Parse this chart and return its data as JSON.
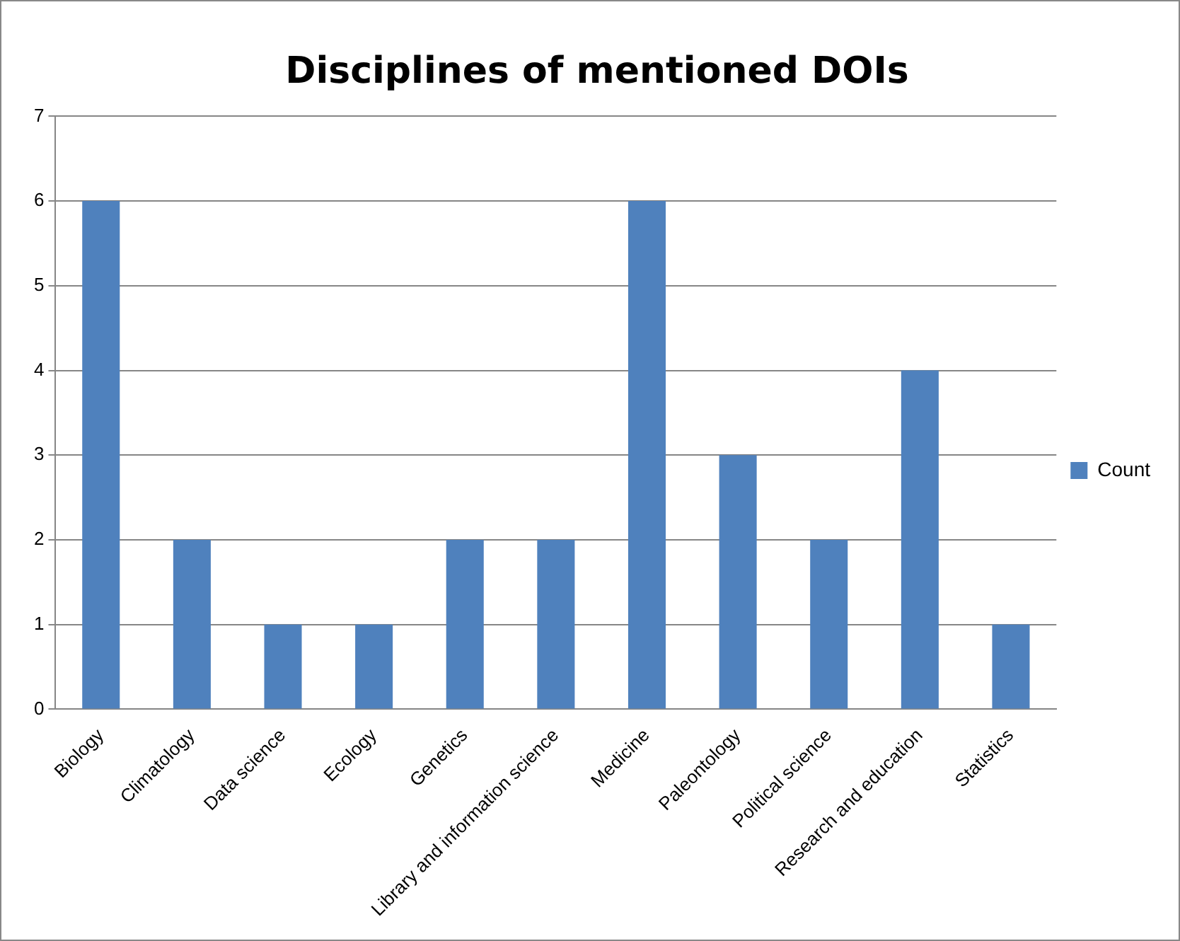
{
  "chart_data": {
    "type": "bar",
    "title": "Disciplines of mentioned DOIs",
    "categories": [
      "Biology",
      "Climatology",
      "Data science",
      "Ecology",
      "Genetics",
      "Library and information science",
      "Medicine",
      "Paleontology",
      "Political science",
      "Research and education",
      "Statistics"
    ],
    "series": [
      {
        "name": "Count",
        "color": "#4f81bd",
        "values": [
          6,
          2,
          1,
          1,
          2,
          2,
          6,
          3,
          2,
          4,
          1
        ]
      }
    ],
    "ylim": [
      0,
      7
    ],
    "yticks": [
      0,
      1,
      2,
      3,
      4,
      5,
      6,
      7
    ],
    "grid": "y",
    "legend": "right"
  }
}
